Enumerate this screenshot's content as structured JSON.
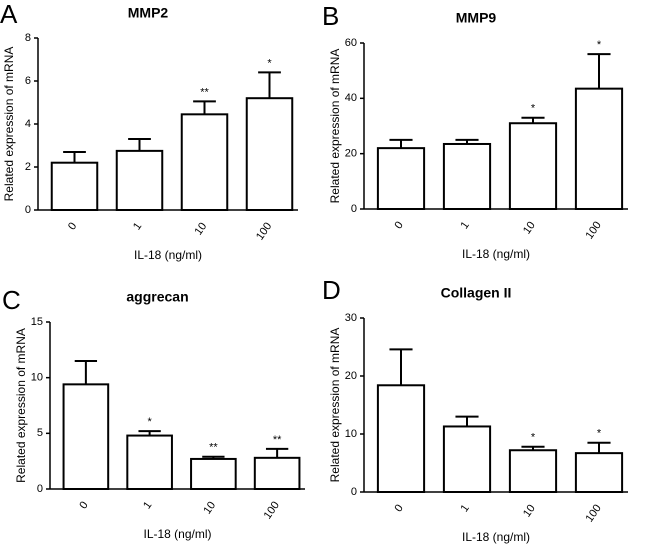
{
  "chart_data": [
    {
      "type": "bar",
      "panel_label": "A",
      "title": "MMP2",
      "xlabel": "IL-18 (ng/ml)",
      "ylabel": "Related expression of mRNA",
      "categories": [
        "0",
        "1",
        "10",
        "100"
      ],
      "values": [
        2.2,
        2.75,
        4.45,
        5.2
      ],
      "errors": [
        0.5,
        0.55,
        0.6,
        1.2
      ],
      "significance": [
        null,
        null,
        "**",
        "*"
      ],
      "color": "#ffffff",
      "ylim": [
        0,
        8
      ],
      "yticks": [
        0,
        2,
        4,
        6,
        8
      ]
    },
    {
      "type": "bar",
      "panel_label": "B",
      "title": "MMP9",
      "xlabel": "IL-18 (ng/ml)",
      "ylabel": "Related expression of mRNA",
      "categories": [
        "0",
        "1",
        "10",
        "100"
      ],
      "values": [
        22,
        23.5,
        31,
        43.5
      ],
      "errors": [
        3,
        1.5,
        2,
        12.5
      ],
      "significance": [
        null,
        null,
        "*",
        "*"
      ],
      "color": "#ffffff",
      "ylim": [
        0,
        60
      ],
      "yticks": [
        0,
        20,
        40,
        60
      ]
    },
    {
      "type": "bar",
      "panel_label": "C",
      "title": "aggrecan",
      "xlabel": "IL-18 (ng/ml)",
      "ylabel": "Related expression of mRNA",
      "categories": [
        "0",
        "1",
        "10",
        "100"
      ],
      "values": [
        9.4,
        4.8,
        2.7,
        2.8
      ],
      "errors": [
        2.1,
        0.4,
        0.2,
        0.8
      ],
      "significance": [
        null,
        "*",
        "**",
        "**"
      ],
      "color": "#ffffff",
      "ylim": [
        0,
        15
      ],
      "yticks": [
        0,
        5,
        10,
        15
      ]
    },
    {
      "type": "bar",
      "panel_label": "D",
      "title": "Collagen II",
      "xlabel": "IL-18 (ng/ml)",
      "ylabel": "Related expression of mRNA",
      "categories": [
        "0",
        "1",
        "10",
        "100"
      ],
      "values": [
        18.4,
        11.3,
        7.2,
        6.7
      ],
      "errors": [
        6.2,
        1.7,
        0.6,
        1.8
      ],
      "significance": [
        null,
        null,
        "*",
        "*"
      ],
      "color": "#ffffff",
      "ylim": [
        0,
        30
      ],
      "yticks": [
        0,
        10,
        20,
        30
      ]
    }
  ]
}
